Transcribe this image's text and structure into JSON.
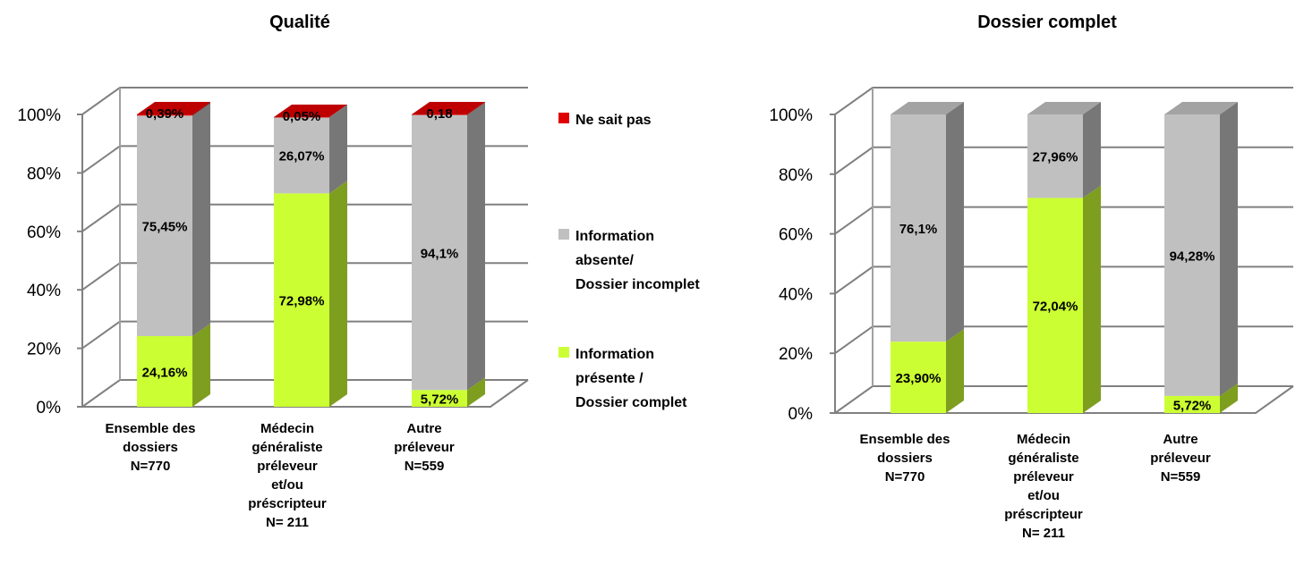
{
  "colors": {
    "ne_sait_pas": "#e00000",
    "absente": "#c0c0c0",
    "presente": "#ccff33",
    "grid": "#808080"
  },
  "chart_data": [
    {
      "type": "bar",
      "stacked": true,
      "title": "Qualité",
      "ylim": [
        0,
        100
      ],
      "yticks": [
        "0%",
        "20%",
        "40%",
        "60%",
        "80%",
        "100%"
      ],
      "categories": [
        [
          "Ensemble des",
          "dossiers",
          "N=770"
        ],
        [
          "Médecin",
          "généraliste",
          "préleveur",
          "et/ou",
          "préscripteur",
          "N= 211"
        ],
        [
          "Autre",
          "préleveur",
          "N=559"
        ]
      ],
      "series": [
        {
          "name": "Information présente / Dossier complet",
          "values": [
            24.16,
            72.98,
            5.72
          ],
          "labels": [
            "24,16%",
            "72,98%",
            "5,72%"
          ]
        },
        {
          "name": "Information absente/ Dossier incomplet",
          "values": [
            75.45,
            26.07,
            94.1
          ],
          "labels": [
            "75,45%",
            "26,07%",
            "94,1%"
          ]
        },
        {
          "name": "Ne sait pas",
          "values": [
            0.39,
            0.05,
            0.18
          ],
          "labels": [
            "0,39%",
            "0,05%",
            "0,18"
          ]
        }
      ],
      "legend": {
        "position": "right",
        "items": [
          {
            "lines": [
              "Ne sait pas"
            ],
            "series": "Ne sait pas"
          },
          {
            "lines": [
              "Information",
              "absente/",
              "Dossier incomplet"
            ],
            "series": "Information absente/ Dossier incomplet"
          },
          {
            "lines": [
              "Information",
              "présente /",
              "Dossier complet"
            ],
            "series": "Information présente / Dossier complet"
          }
        ]
      }
    },
    {
      "type": "bar",
      "stacked": true,
      "title": "Dossier complet",
      "ylim": [
        0,
        100
      ],
      "yticks": [
        "0%",
        "20%",
        "40%",
        "60%",
        "80%",
        "100%"
      ],
      "categories": [
        [
          "Ensemble des",
          "dossiers",
          "N=770"
        ],
        [
          "Médecin",
          "généraliste",
          "préleveur",
          "et/ou",
          "préscripteur",
          "N= 211"
        ],
        [
          "Autre",
          "préleveur",
          "N=559"
        ]
      ],
      "series": [
        {
          "name": "Information présente / Dossier complet",
          "values": [
            23.9,
            72.04,
            5.72
          ],
          "labels": [
            "23,90%",
            "72,04%",
            "5,72%"
          ]
        },
        {
          "name": "Information absente/ Dossier incomplet",
          "values": [
            76.1,
            27.96,
            94.28
          ],
          "labels": [
            "76,1%",
            "27,96%",
            "94,28%"
          ]
        }
      ]
    }
  ]
}
